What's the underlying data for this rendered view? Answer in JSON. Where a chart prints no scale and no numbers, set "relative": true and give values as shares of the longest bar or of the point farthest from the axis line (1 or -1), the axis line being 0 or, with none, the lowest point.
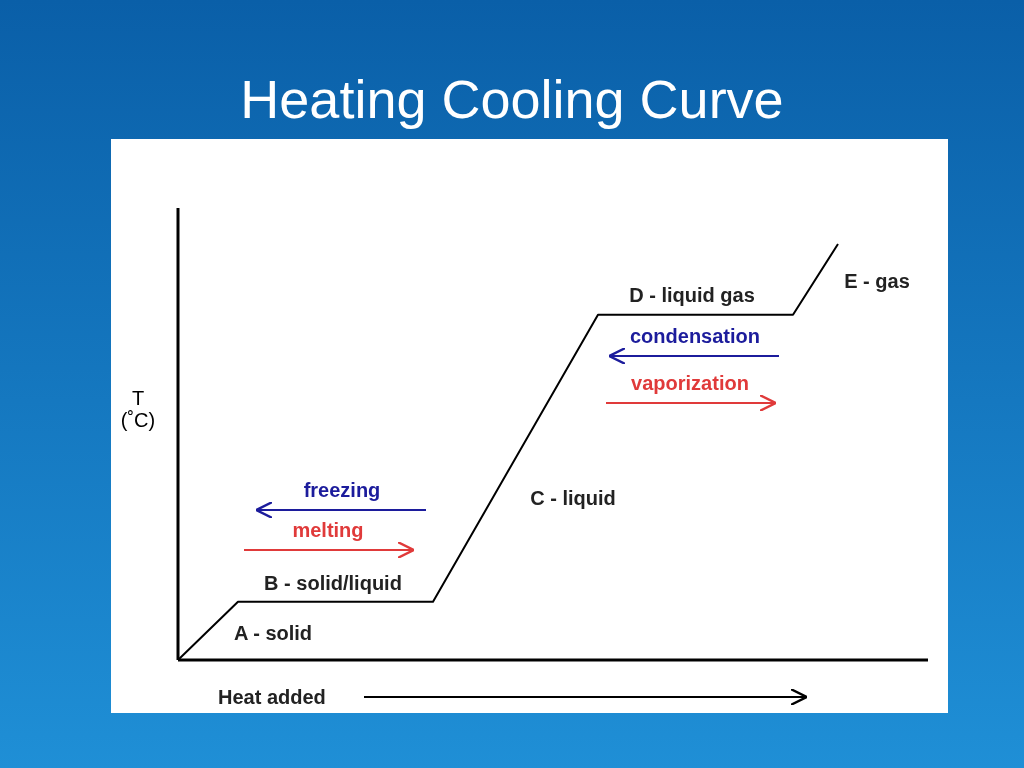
{
  "chart_data": {
    "type": "line",
    "title": "Heating Cooling Curve",
    "xlabel": "Heat added",
    "ylabel": "T (˚C)",
    "relative": true,
    "line_style": "solid",
    "categories": [
      null,
      null,
      null,
      null,
      null,
      null,
      null,
      null,
      null,
      null,
      null,
      null,
      null,
      null,
      null,
      null,
      null,
      null,
      null,
      null,
      null,
      null,
      null,
      null,
      null,
      null,
      null,
      null,
      null,
      null,
      null,
      null,
      null,
      null,
      null,
      null,
      null,
      null,
      null,
      null,
      null,
      null,
      null,
      null,
      null,
      null,
      null,
      null,
      null,
      null,
      null
    ],
    "series": [
      {
        "color": "#000000",
        "values": [
          0,
          null,
          null,
          null,
          0.14,
          null,
          null,
          null,
          null,
          null,
          null,
          null,
          null,
          null,
          null,
          null,
          null,
          0.14,
          null,
          null,
          null,
          null,
          null,
          null,
          null,
          null,
          null,
          null,
          0.83,
          null,
          null,
          null,
          null,
          null,
          null,
          null,
          null,
          null,
          null,
          null,
          null,
          0.83,
          null,
          null,
          1,
          null,
          null,
          null,
          null,
          null,
          null
        ]
      }
    ],
    "annotations": [
      "A - solid",
      "B - solid/liquid",
      "C - liquid",
      "D - liquid gas",
      "E - gas",
      "freezing",
      "melting",
      "condensation",
      "vaporization"
    ]
  }
}
